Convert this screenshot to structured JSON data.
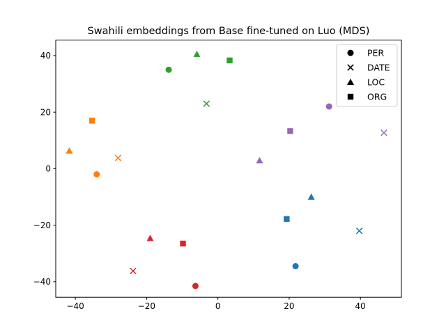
{
  "chart_data": {
    "type": "scatter",
    "title": "Swahili embeddings from Base fine-tuned on Luo (MDS)",
    "xlabel": "",
    "ylabel": "",
    "xlim": [
      -45.5,
      51.5
    ],
    "ylim": [
      -45.5,
      45.5
    ],
    "xticks": [
      -40,
      -20,
      0,
      20,
      40
    ],
    "yticks": [
      -40,
      -20,
      0,
      20,
      40
    ],
    "grid": false,
    "legend_position": "top-right",
    "legend": [
      {
        "label": "PER",
        "marker": "circle"
      },
      {
        "label": "DATE",
        "marker": "x"
      },
      {
        "label": "LOC",
        "marker": "triangle"
      },
      {
        "label": "ORG",
        "marker": "square"
      }
    ],
    "points": [
      {
        "x": 21.8,
        "y": -34.5,
        "type": "PER",
        "color": "#1f77b4"
      },
      {
        "x": 39.7,
        "y": -22.0,
        "type": "DATE",
        "color": "#1f77b4"
      },
      {
        "x": 26.2,
        "y": -10.0,
        "type": "LOC",
        "color": "#1f77b4"
      },
      {
        "x": 19.3,
        "y": -17.8,
        "type": "ORG",
        "color": "#1f77b4"
      },
      {
        "x": -34.0,
        "y": -2.0,
        "type": "PER",
        "color": "#ff7f0e"
      },
      {
        "x": -28.0,
        "y": 3.8,
        "type": "DATE",
        "color": "#ff7f0e"
      },
      {
        "x": -41.7,
        "y": 6.3,
        "type": "LOC",
        "color": "#ff7f0e"
      },
      {
        "x": -35.3,
        "y": 17.0,
        "type": "ORG",
        "color": "#ff7f0e"
      },
      {
        "x": -13.8,
        "y": 35.0,
        "type": "PER",
        "color": "#2ca02c"
      },
      {
        "x": -3.2,
        "y": 23.0,
        "type": "DATE",
        "color": "#2ca02c"
      },
      {
        "x": -5.9,
        "y": 40.5,
        "type": "LOC",
        "color": "#2ca02c"
      },
      {
        "x": 3.3,
        "y": 38.3,
        "type": "ORG",
        "color": "#2ca02c"
      },
      {
        "x": -6.3,
        "y": -41.5,
        "type": "PER",
        "color": "#d62728"
      },
      {
        "x": -23.8,
        "y": -36.2,
        "type": "DATE",
        "color": "#d62728"
      },
      {
        "x": -19.0,
        "y": -24.6,
        "type": "LOC",
        "color": "#d62728"
      },
      {
        "x": -9.8,
        "y": -26.5,
        "type": "ORG",
        "color": "#d62728"
      },
      {
        "x": 31.2,
        "y": 22.0,
        "type": "PER",
        "color": "#9467bd"
      },
      {
        "x": 46.6,
        "y": 12.7,
        "type": "DATE",
        "color": "#9467bd"
      },
      {
        "x": 11.7,
        "y": 2.9,
        "type": "LOC",
        "color": "#9467bd"
      },
      {
        "x": 20.3,
        "y": 13.3,
        "type": "ORG",
        "color": "#9467bd"
      }
    ]
  }
}
